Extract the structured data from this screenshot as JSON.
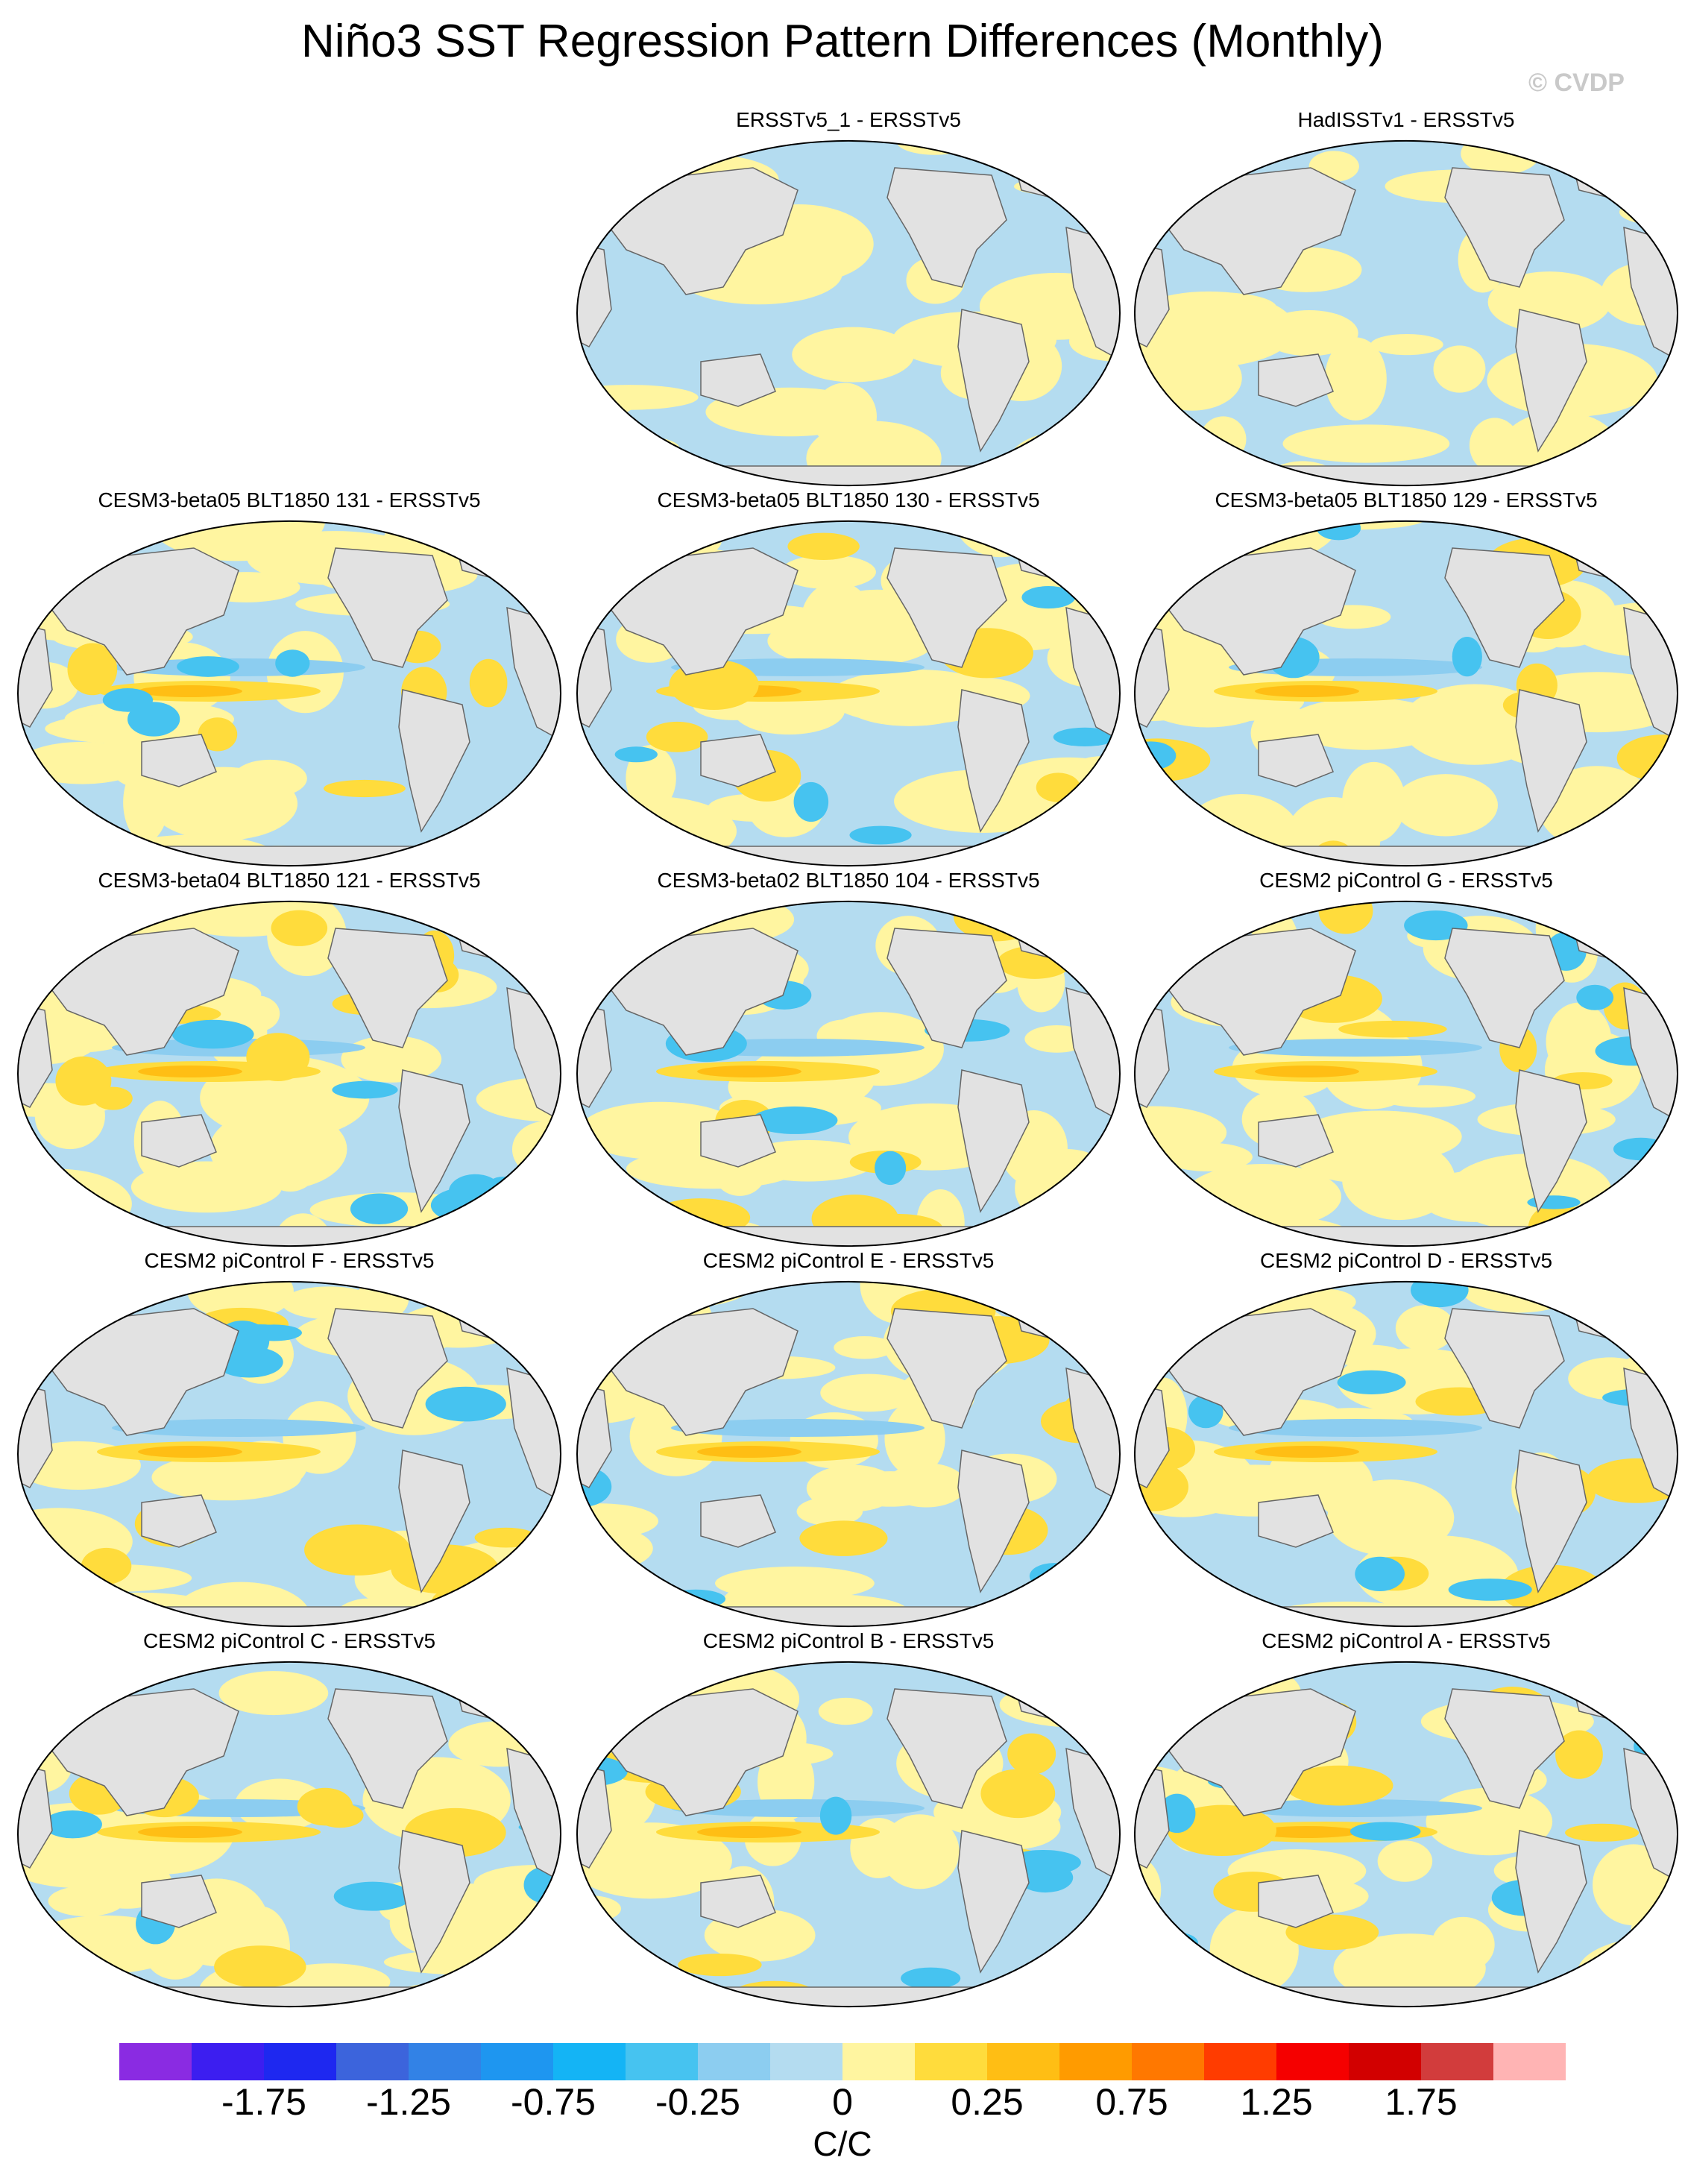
{
  "title": "Niño3 SST Regression Pattern Differences (Monthly)",
  "copyright": "© CVDP",
  "units": "C/C",
  "panels": [
    {
      "label": "ERSSTv5_1 - ERSSTv5",
      "pattern": "a"
    },
    {
      "label": "HadISSTv1 - ERSSTv5",
      "pattern": "b"
    },
    {
      "label": "CESM3-beta05 BLT1850 131 - ERSSTv5",
      "pattern": "c"
    },
    {
      "label": "CESM3-beta05 BLT1850 130 - ERSSTv5",
      "pattern": "c"
    },
    {
      "label": "CESM3-beta05 BLT1850 129 - ERSSTv5",
      "pattern": "c"
    },
    {
      "label": "CESM3-beta04 BLT1850 121 - ERSSTv5",
      "pattern": "c"
    },
    {
      "label": "CESM3-beta02 BLT1850 104 - ERSSTv5",
      "pattern": "c"
    },
    {
      "label": "CESM2 piControl G - ERSSTv5",
      "pattern": "d"
    },
    {
      "label": "CESM2 piControl F - ERSSTv5",
      "pattern": "d"
    },
    {
      "label": "CESM2 piControl E - ERSSTv5",
      "pattern": "d"
    },
    {
      "label": "CESM2 piControl D - ERSSTv5",
      "pattern": "d"
    },
    {
      "label": "CESM2 piControl C - ERSSTv5",
      "pattern": "d"
    },
    {
      "label": "CESM2 piControl B - ERSSTv5",
      "pattern": "d"
    },
    {
      "label": "CESM2 piControl A - ERSSTv5",
      "pattern": "d"
    }
  ],
  "colorbar": {
    "colors": [
      "#8a2be2",
      "#3c1ef0",
      "#1e28f0",
      "#3c64dc",
      "#3282e6",
      "#1e96f0",
      "#14b4f5",
      "#46c3f0",
      "#8ccdf0",
      "#b4dcf0",
      "#fff5a0",
      "#ffdc3c",
      "#ffbe14",
      "#ff9b00",
      "#ff7800",
      "#ff3c00",
      "#f50000",
      "#d20000",
      "#d23c3c",
      "#ffb4b4"
    ],
    "ticks": [
      "-1.75",
      "-1.25",
      "-0.75",
      "-0.25",
      "0",
      "0.25",
      "0.75",
      "1.25",
      "1.75"
    ]
  }
}
